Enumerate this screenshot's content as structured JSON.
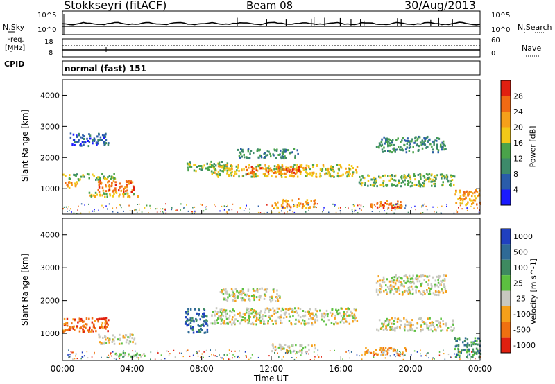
{
  "header": {
    "station": "Stokkseyri (fitACF)",
    "beam": "Beam 08",
    "date": "30/Aug/2013"
  },
  "noise_panel": {
    "left_label": "N.Sky",
    "right_label": "N.Search",
    "ticks_left": [
      "10^5",
      "10^0"
    ],
    "ticks_right": [
      "10^5",
      "10^0"
    ]
  },
  "freq_panel": {
    "left_label_top": "Freq.",
    "left_label_unit": "[MHz]",
    "ticks_left": [
      "18",
      "8"
    ],
    "ticks_right": [
      "60",
      "0"
    ],
    "right_label": "Nave"
  },
  "cpid": {
    "label": "CPID",
    "value": "normal (fast) 151"
  },
  "chart_data": [
    {
      "type": "heatmap",
      "name": "power",
      "ylabel": "Slant Range [km]",
      "ylim": [
        180,
        4500
      ],
      "yticks": [
        "1000",
        "2000",
        "3000",
        "4000"
      ],
      "colorbar": {
        "label": "Power [dB]",
        "ticks": [
          "4",
          "8",
          "12",
          "16",
          "20",
          "24",
          "28"
        ],
        "colors": [
          "#1a1aff",
          "#2a5caa",
          "#3d8a6a",
          "#4aa34a",
          "#f2c818",
          "#f5a01a",
          "#f06a14",
          "#e02010"
        ]
      },
      "bands": [
        {
          "t0": 0.0,
          "t1": 1.0,
          "r0": 1050,
          "r1": 1250,
          "level": 5
        },
        {
          "t0": 0.0,
          "t1": 3.0,
          "r0": 1300,
          "r1": 1500,
          "level": 3
        },
        {
          "t0": 2.0,
          "t1": 4.1,
          "r0": 900,
          "r1": 1300,
          "level": 6
        },
        {
          "t0": 0.4,
          "t1": 2.6,
          "r0": 2400,
          "r1": 2800,
          "level": 1
        },
        {
          "t0": 1.5,
          "t1": 4.5,
          "r0": 750,
          "r1": 900,
          "level": 4
        },
        {
          "t0": 7.0,
          "t1": 9.5,
          "r0": 1600,
          "r1": 1900,
          "level": 3
        },
        {
          "t0": 8.5,
          "t1": 16.9,
          "r0": 1400,
          "r1": 1800,
          "level": 4
        },
        {
          "t0": 10.5,
          "t1": 14.0,
          "r0": 1500,
          "r1": 1750,
          "level": 6
        },
        {
          "t0": 10.0,
          "t1": 13.5,
          "r0": 2000,
          "r1": 2300,
          "level": 2
        },
        {
          "t0": 12.0,
          "t1": 14.5,
          "r0": 400,
          "r1": 700,
          "level": 5
        },
        {
          "t0": 17.5,
          "t1": 19.5,
          "r0": 400,
          "r1": 650,
          "level": 6
        },
        {
          "t0": 17.0,
          "t1": 22.5,
          "r0": 1100,
          "r1": 1500,
          "level": 3
        },
        {
          "t0": 18.0,
          "t1": 22.0,
          "r0": 2200,
          "r1": 2700,
          "level": 2
        },
        {
          "t0": 22.5,
          "t1": 24.0,
          "r0": 500,
          "r1": 1000,
          "level": 5
        }
      ]
    },
    {
      "type": "heatmap",
      "name": "velocity",
      "ylabel": "Slant Range [km]",
      "xlabel": "Time UT",
      "ylim": [
        180,
        4500
      ],
      "yticks": [
        "1000",
        "2000",
        "3000",
        "4000"
      ],
      "xticks": [
        "00:00",
        "04:00",
        "08:00",
        "12:00",
        "16:00",
        "20:00",
        "00:00"
      ],
      "xlim": [
        0,
        24
      ],
      "colorbar": {
        "label": "Velocity [m s^-1]",
        "ticks": [
          "1000",
          "500",
          "100",
          "25",
          "-25",
          "-100",
          "-500",
          "-1000"
        ],
        "colors": [
          "#2040c0",
          "#2f6a96",
          "#3e8a60",
          "#5cc040",
          "#c8c8c0",
          "#f5a01a",
          "#f07010",
          "#e02010"
        ]
      },
      "bands": [
        {
          "t0": 0.0,
          "t1": 2.6,
          "r0": 1050,
          "r1": 1500,
          "level": 6
        },
        {
          "t0": 2.0,
          "t1": 4.2,
          "r0": 700,
          "r1": 1000,
          "level": 4
        },
        {
          "t0": 3.0,
          "t1": 5.0,
          "r0": 300,
          "r1": 450,
          "level": 3
        },
        {
          "t0": 7.0,
          "t1": 8.3,
          "r0": 1000,
          "r1": 1800,
          "level": 1
        },
        {
          "t0": 8.5,
          "t1": 16.9,
          "r0": 1300,
          "r1": 1800,
          "level": 4
        },
        {
          "t0": 9.0,
          "t1": 12.5,
          "r0": 2000,
          "r1": 2400,
          "level": 4
        },
        {
          "t0": 12.0,
          "t1": 14.5,
          "r0": 450,
          "r1": 700,
          "level": 4
        },
        {
          "t0": 17.3,
          "t1": 19.8,
          "r0": 350,
          "r1": 600,
          "level": 5
        },
        {
          "t0": 18.0,
          "t1": 22.5,
          "r0": 1100,
          "r1": 1500,
          "level": 4
        },
        {
          "t0": 18.0,
          "t1": 22.0,
          "r0": 2200,
          "r1": 2800,
          "level": 4
        },
        {
          "t0": 22.5,
          "t1": 24.0,
          "r0": 300,
          "r1": 900,
          "level": 2
        }
      ]
    }
  ]
}
